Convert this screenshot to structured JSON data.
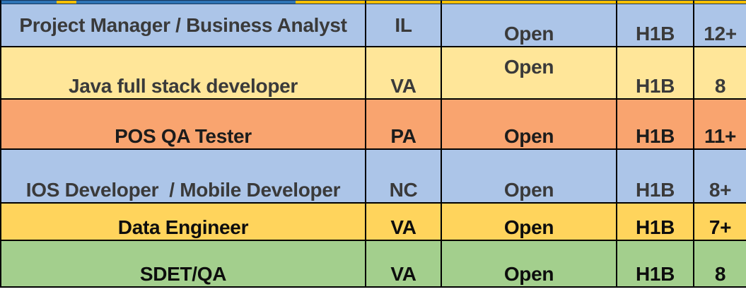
{
  "table": {
    "rows": [
      {
        "job_title": "Project Manager / Business Analyst",
        "state": "IL",
        "status": "Open",
        "visa": "H1B",
        "experience": "12+",
        "row_bg": "#ACC5E8",
        "text_color": "#3A3A3A"
      },
      {
        "job_title": "Java full stack developer",
        "state": "VA",
        "status": "Open",
        "visa": "H1B",
        "experience": "8",
        "row_bg": "#FFE699",
        "text_color": "#3A3A3A"
      },
      {
        "job_title": "POS QA Tester",
        "state": "PA",
        "status": "Open",
        "visa": "H1B",
        "experience": "11+",
        "row_bg": "#F9A46F",
        "text_color": "#1C1C1C"
      },
      {
        "job_title": "IOS Developer  / Mobile Developer",
        "state": "NC",
        "status": "Open",
        "visa": "H1B",
        "experience": "8+",
        "row_bg": "#ACC5E8",
        "text_color": "#3A3A3A"
      },
      {
        "job_title": "Data Engineer",
        "state": "VA",
        "status": "Open",
        "visa": "H1B",
        "experience": "7+",
        "row_bg": "#FFD45C",
        "text_color": "#0D0D0D"
      },
      {
        "job_title": "SDET/QA",
        "state": "VA",
        "status": "Open",
        "visa": "H1B",
        "experience": "8",
        "row_bg": "#A3CF8D",
        "text_color": "#0D0D0D"
      }
    ]
  },
  "cutoff_strip": {
    "base_color": "#2E74B5",
    "accent_color": "#FFC000",
    "edge_color": "#16365C"
  },
  "grid_line_color": "#000000",
  "page_background": "#FFFFFF"
}
